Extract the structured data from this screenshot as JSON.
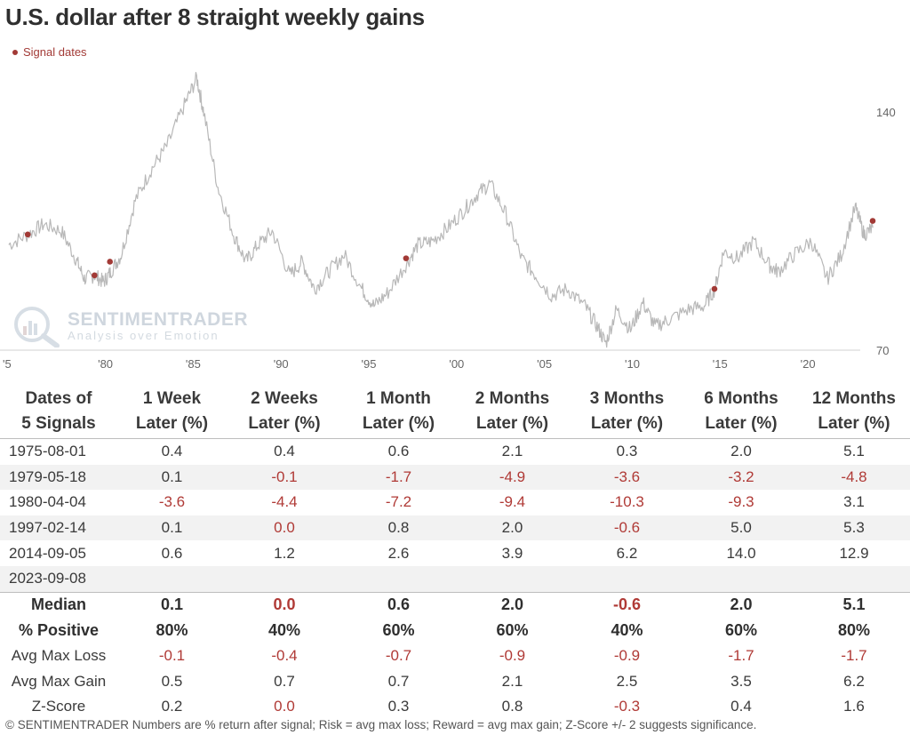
{
  "title": "U.S. dollar after 8 straight weekly gains",
  "legend_label": "Signal dates",
  "logo": {
    "brand": "SENTIMENTRADER",
    "tagline": "Analysis over Emotion"
  },
  "colors": {
    "line": "#b8b8b8",
    "signal": "#a23a36",
    "negative": "#b03a36",
    "band": "#f2f2f2"
  },
  "chart_data": {
    "type": "line",
    "x_ticks": [
      "'5",
      "'80",
      "'85",
      "'90",
      "'95",
      "'00",
      "'05",
      "'10",
      "'15",
      "'20"
    ],
    "x_tick_years": [
      1975,
      1980,
      1985,
      1990,
      1995,
      2000,
      2005,
      2010,
      2015,
      2020
    ],
    "y_ticks": [
      70,
      140
    ],
    "ylim": [
      70,
      140
    ],
    "series": [
      {
        "x": [
          1974.5,
          1975.6,
          1976.5,
          1977.5,
          1978.3,
          1978.8,
          1979.4,
          1979.9,
          1980.3,
          1980.9,
          1981.7,
          1982.6,
          1983.5,
          1984.5,
          1985.2,
          1985.6,
          1986.4,
          1987.3,
          1988.0,
          1988.7,
          1989.5,
          1990.5,
          1991.2,
          1991.9,
          1992.7,
          1993.6,
          1994.6,
          1995.3,
          1996.1,
          1997.1,
          1997.8,
          1998.6,
          1999.5,
          2000.4,
          2001.2,
          2001.9,
          2002.8,
          2003.7,
          2004.5,
          2005.4,
          2006.3,
          2007.3,
          2008.0,
          2008.5,
          2009.1,
          2009.9,
          2010.6,
          2011.3,
          2012.1,
          2013.2,
          2014.1,
          2014.7,
          2015.2,
          2016.0,
          2016.9,
          2017.8,
          2018.3,
          2019.2,
          2020.2,
          2021.1,
          2021.9,
          2022.7,
          2023.2,
          2023.7
        ],
        "y": [
          101,
          104,
          107,
          105,
          97,
          91,
          92,
          90,
          93,
          98,
          114,
          123,
          130,
          142,
          150,
          140,
          118,
          104,
          96,
          101,
          105,
          92,
          96,
          88,
          93,
          98,
          88,
          83,
          87,
          95,
          101,
          102,
          106,
          111,
          116,
          119,
          110,
          97,
          92,
          86,
          88,
          83,
          77,
          72,
          82,
          76,
          84,
          77,
          79,
          82,
          83,
          88,
          99,
          97,
          102,
          95,
          93,
          98,
          102,
          91,
          98,
          112,
          104,
          106
        ]
      }
    ],
    "signals": [
      {
        "date": "1975-08-01",
        "x": 1975.58,
        "y": 104
      },
      {
        "date": "1979-05-18",
        "x": 1979.38,
        "y": 92
      },
      {
        "date": "1980-04-04",
        "x": 1980.26,
        "y": 96
      },
      {
        "date": "1997-02-14",
        "x": 1997.12,
        "y": 97
      },
      {
        "date": "2014-09-05",
        "x": 2014.68,
        "y": 88
      },
      {
        "date": "2023-09-08",
        "x": 2023.69,
        "y": 108
      }
    ]
  },
  "table": {
    "headers": [
      [
        "Dates of",
        "5 Signals"
      ],
      [
        "1 Week",
        "Later (%)"
      ],
      [
        "2 Weeks",
        "Later (%)"
      ],
      [
        "1 Month",
        "Later (%)"
      ],
      [
        "2 Months",
        "Later (%)"
      ],
      [
        "3 Months",
        "Later (%)"
      ],
      [
        "6 Months",
        "Later (%)"
      ],
      [
        "12 Months",
        "Later (%)"
      ]
    ],
    "rows": [
      [
        "1975-08-01",
        "0.4",
        "0.4",
        "0.6",
        "2.1",
        "0.3",
        "2.0",
        "5.1"
      ],
      [
        "1979-05-18",
        "0.1",
        "-0.1",
        "-1.7",
        "-4.9",
        "-3.6",
        "-3.2",
        "-4.8"
      ],
      [
        "1980-04-04",
        "-3.6",
        "-4.4",
        "-7.2",
        "-9.4",
        "-10.3",
        "-9.3",
        "3.1"
      ],
      [
        "1997-02-14",
        "0.1",
        "0.0",
        "0.8",
        "2.0",
        "-0.6",
        "5.0",
        "5.3"
      ],
      [
        "2014-09-05",
        "0.6",
        "1.2",
        "2.6",
        "3.9",
        "6.2",
        "14.0",
        "12.9"
      ],
      [
        "2023-09-08",
        "",
        "",
        "",
        "",
        "",
        "",
        ""
      ]
    ],
    "negative_cells": [
      [
        1,
        2
      ],
      [
        1,
        3
      ],
      [
        1,
        4
      ],
      [
        1,
        5
      ],
      [
        1,
        6
      ],
      [
        1,
        7
      ],
      [
        2,
        1
      ],
      [
        2,
        2
      ],
      [
        2,
        3
      ],
      [
        2,
        4
      ],
      [
        2,
        5
      ],
      [
        2,
        6
      ],
      [
        3,
        2
      ],
      [
        3,
        5
      ]
    ],
    "summary": [
      {
        "label": "Median",
        "values": [
          "0.1",
          "0.0",
          "0.6",
          "2.0",
          "-0.6",
          "2.0",
          "5.1"
        ],
        "bold": true,
        "negative": [
          1,
          4
        ]
      },
      {
        "label": "% Positive",
        "values": [
          "80%",
          "40%",
          "60%",
          "60%",
          "40%",
          "60%",
          "80%"
        ],
        "bold": true,
        "negative": []
      },
      {
        "label": "Avg Max Loss",
        "values": [
          "-0.1",
          "-0.4",
          "-0.7",
          "-0.9",
          "-0.9",
          "-1.7",
          "-1.7"
        ],
        "bold": false,
        "negative": [
          0,
          1,
          2,
          3,
          4,
          5,
          6
        ]
      },
      {
        "label": "Avg Max Gain",
        "values": [
          "0.5",
          "0.7",
          "0.7",
          "2.1",
          "2.5",
          "3.5",
          "6.2"
        ],
        "bold": false,
        "negative": []
      },
      {
        "label": "Z-Score",
        "values": [
          "0.2",
          "0.0",
          "0.3",
          "0.8",
          "-0.3",
          "0.4",
          "1.6"
        ],
        "bold": false,
        "negative": [
          1,
          4
        ]
      }
    ]
  },
  "footer": "© SENTIMENTRADER  Numbers are % return after signal; Risk = avg max loss; Reward = avg max gain; Z-Score +/- 2 suggests significance."
}
